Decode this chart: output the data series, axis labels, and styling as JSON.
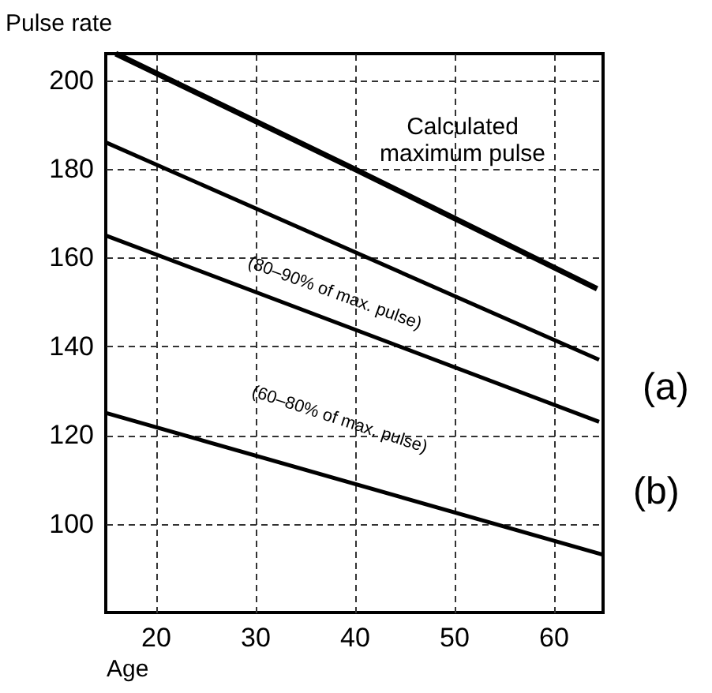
{
  "chart_data": {
    "type": "line",
    "xlabel": "Age",
    "ylabel": "Pulse rate",
    "xlim": [
      15,
      65
    ],
    "ylim": [
      80,
      206
    ],
    "xticks": [
      20,
      30,
      40,
      50,
      60
    ],
    "yticks": [
      100,
      120,
      140,
      160,
      180,
      200
    ],
    "grid": true,
    "series": [
      {
        "color": "#000000",
        "x": [
          16,
          40,
          64.4
        ],
        "values": [
          206,
          180,
          153
        ]
      },
      {
        "color": "#000000",
        "x": [
          15,
          64.6
        ],
        "values": [
          186,
          137
        ]
      },
      {
        "color": "#000000",
        "x": [
          15,
          64.6
        ],
        "values": [
          165,
          123
        ]
      },
      {
        "color": "#000000",
        "x": [
          15,
          65
        ],
        "values": [
          125,
          93
        ]
      }
    ],
    "annotations": [
      "Calculated maximum pulse",
      "(80–90% of max. pulse)",
      "(60–80% of max. pulse)",
      "(a)",
      "(b)"
    ]
  }
}
